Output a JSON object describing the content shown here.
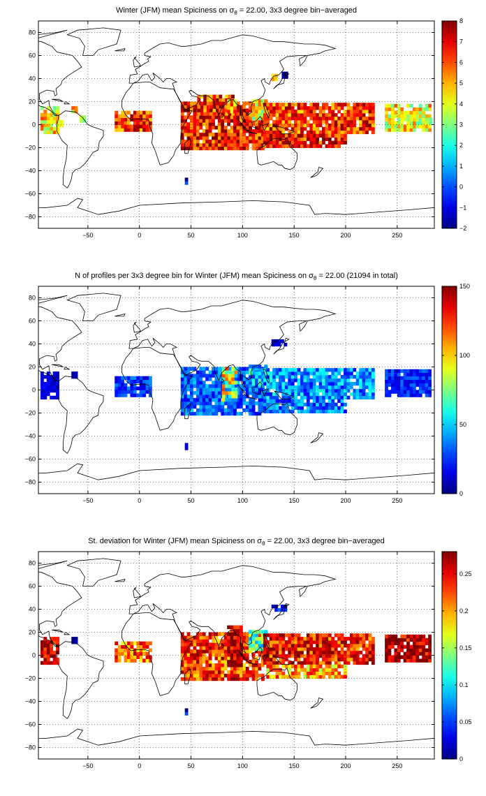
{
  "chart_data": [
    {
      "type": "heatmap",
      "title_parts": {
        "pre": "Winter (JFM) mean Spiciness on ",
        "sym": "σ",
        "sub": "θ",
        "post": " = 22.00, 3x3 degree bin−averaged"
      },
      "xticks": [
        "−50",
        "0",
        "50",
        "100",
        "150",
        "200",
        "250"
      ],
      "yticks": [
        "80",
        "60",
        "40",
        "20",
        "0",
        "−20",
        "−40",
        "−60",
        "−80"
      ],
      "colorbar": {
        "min": -2,
        "max": 8,
        "ticks": [
          "8",
          "7",
          "6",
          "5",
          "4",
          "3",
          "2",
          "1",
          "0",
          "−1",
          "−2"
        ]
      },
      "xlim": [
        -98,
        286
      ],
      "ylim": [
        -90,
        90
      ],
      "grid": true,
      "regions": [
        {
          "lon": [
            -96,
            -80
          ],
          "lat": [
            -8,
            15
          ],
          "value": 4.5
        },
        {
          "lon": [
            -80,
            -76
          ],
          "lat": [
            -2,
            2
          ],
          "value": 3
        },
        {
          "lon": [
            -66,
            -60
          ],
          "lat": [
            10,
            16
          ],
          "value": 4.8
        },
        {
          "lon": [
            -58,
            -54
          ],
          "lat": [
            2,
            6
          ],
          "value": 2.5
        },
        {
          "lon": [
            -24,
            12
          ],
          "lat": [
            -6,
            10
          ],
          "value": 6.4
        },
        {
          "lon": [
            40,
            120
          ],
          "lat": [
            -22,
            20
          ],
          "value": 6.6
        },
        {
          "lon": [
            56,
            90
          ],
          "lat": [
            8,
            24
          ],
          "value": 6.3
        },
        {
          "lon": [
            85,
            92
          ],
          "lat": [
            10,
            20
          ],
          "value": 5.2
        },
        {
          "lon": [
            106,
            122
          ],
          "lat": [
            4,
            22
          ],
          "value": 4.2
        },
        {
          "lon": [
            120,
            228
          ],
          "lat": [
            -8,
            18
          ],
          "value": 6.2
        },
        {
          "lon": [
            120,
            200
          ],
          "lat": [
            -20,
            -8
          ],
          "value": 6.8
        },
        {
          "lon": [
            128,
            134
          ],
          "lat": [
            38,
            42
          ],
          "value": 5.4
        },
        {
          "lon": [
            138,
            142
          ],
          "lat": [
            40,
            44
          ],
          "value": -1.8
        },
        {
          "lon": [
            238,
            282
          ],
          "lat": [
            -6,
            16
          ],
          "value": 4.3
        },
        {
          "lon": [
            278,
            284
          ],
          "lat": [
            0,
            6
          ],
          "value": 3.0
        },
        {
          "lon": [
            44,
            46
          ],
          "lat": [
            -52,
            -48
          ],
          "value": -1.5
        }
      ]
    },
    {
      "type": "heatmap",
      "title_parts": {
        "pre": "N of profiles per 3x3 degree bin for Winter (JFM) mean Spiciness on ",
        "sym": "σ",
        "sub": "θ",
        "post": " = 22.00 (21094 in total)"
      },
      "xticks": [
        "−50",
        "0",
        "50",
        "100",
        "150",
        "200",
        "250"
      ],
      "yticks": [
        "80",
        "60",
        "40",
        "20",
        "0",
        "−20",
        "−40",
        "−60",
        "−80"
      ],
      "colorbar": {
        "min": 0,
        "max": 150,
        "ticks": [
          "150",
          "100",
          "50",
          "0"
        ]
      },
      "xlim": [
        -98,
        286
      ],
      "ylim": [
        -90,
        90
      ],
      "grid": true,
      "regions": [
        {
          "lon": [
            -96,
            -80
          ],
          "lat": [
            -8,
            15
          ],
          "value": 12
        },
        {
          "lon": [
            -66,
            -60
          ],
          "lat": [
            10,
            16
          ],
          "value": 8
        },
        {
          "lon": [
            -24,
            12
          ],
          "lat": [
            -6,
            10
          ],
          "value": 22
        },
        {
          "lon": [
            40,
            120
          ],
          "lat": [
            -22,
            20
          ],
          "value": 28
        },
        {
          "lon": [
            80,
            95
          ],
          "lat": [
            -10,
            20
          ],
          "value": 70
        },
        {
          "lon": [
            106,
            122
          ],
          "lat": [
            4,
            22
          ],
          "value": 40
        },
        {
          "lon": [
            120,
            228
          ],
          "lat": [
            -8,
            18
          ],
          "value": 35
        },
        {
          "lon": [
            120,
            200
          ],
          "lat": [
            -20,
            -8
          ],
          "value": 30
        },
        {
          "lon": [
            238,
            282
          ],
          "lat": [
            -6,
            16
          ],
          "value": 20
        },
        {
          "lon": [
            128,
            142
          ],
          "lat": [
            38,
            44
          ],
          "value": 10
        },
        {
          "lon": [
            44,
            46
          ],
          "lat": [
            -52,
            -48
          ],
          "value": 8
        }
      ]
    },
    {
      "type": "heatmap",
      "title_parts": {
        "pre": "St. deviation for Winter (JFM) mean Spiciness on ",
        "sym": "σ",
        "sub": "θ",
        "post": " = 22.00, 3x3 degree bin−averaged"
      },
      "xticks": [
        "−50",
        "0",
        "50",
        "100",
        "150",
        "200",
        "250"
      ],
      "yticks": [
        "80",
        "60",
        "40",
        "20",
        "0",
        "−20",
        "−40",
        "−60",
        "−80"
      ],
      "colorbar": {
        "min": 0,
        "max": 0.28,
        "ticks": [
          "0.25",
          "0.2",
          "0.15",
          "0.1",
          "0.05",
          "0"
        ]
      },
      "xlim": [
        -98,
        286
      ],
      "ylim": [
        -90,
        90
      ],
      "grid": true,
      "regions": [
        {
          "lon": [
            -96,
            -80
          ],
          "lat": [
            -8,
            15
          ],
          "value": 0.27
        },
        {
          "lon": [
            -66,
            -60
          ],
          "lat": [
            10,
            16
          ],
          "value": 0.02
        },
        {
          "lon": [
            -24,
            12
          ],
          "lat": [
            -6,
            10
          ],
          "value": 0.22
        },
        {
          "lon": [
            40,
            120
          ],
          "lat": [
            -22,
            20
          ],
          "value": 0.23
        },
        {
          "lon": [
            85,
            100
          ],
          "lat": [
            -10,
            24
          ],
          "value": 0.27
        },
        {
          "lon": [
            106,
            122
          ],
          "lat": [
            4,
            22
          ],
          "value": 0.12
        },
        {
          "lon": [
            120,
            228
          ],
          "lat": [
            -8,
            18
          ],
          "value": 0.24
        },
        {
          "lon": [
            120,
            200
          ],
          "lat": [
            -20,
            -8
          ],
          "value": 0.2
        },
        {
          "lon": [
            238,
            282
          ],
          "lat": [
            -6,
            16
          ],
          "value": 0.27
        },
        {
          "lon": [
            128,
            142
          ],
          "lat": [
            38,
            44
          ],
          "value": 0.03
        },
        {
          "lon": [
            44,
            46
          ],
          "lat": [
            -52,
            -48
          ],
          "value": 0.01
        }
      ]
    }
  ]
}
